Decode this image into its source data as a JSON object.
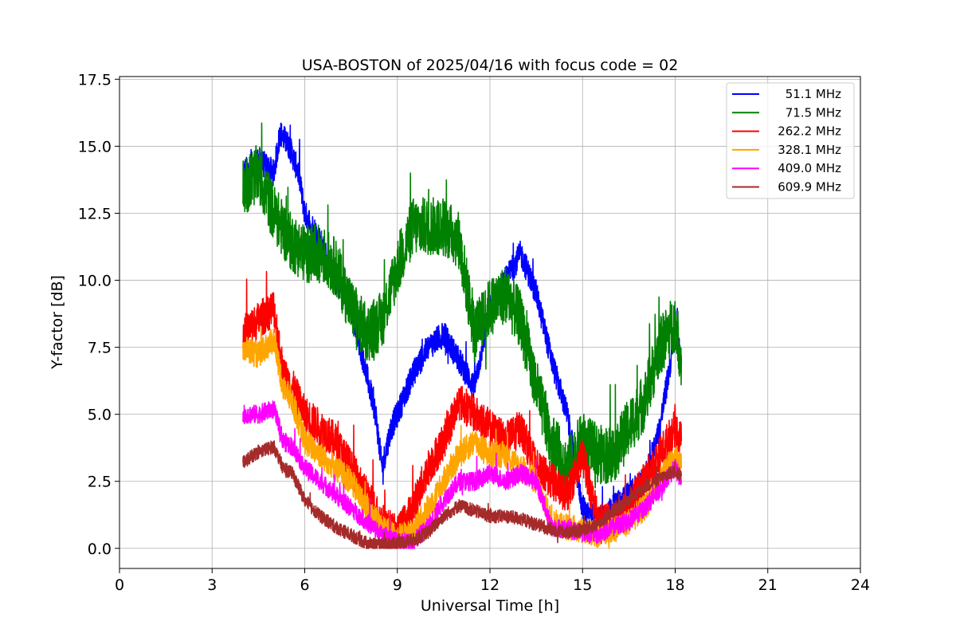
{
  "chart_data": {
    "type": "line",
    "title": "USA-BOSTON of 2025/04/16 with focus code = 02",
    "xlabel": "Universal Time [h]",
    "ylabel": "Y-factor [dB]",
    "xlim": [
      0,
      24
    ],
    "ylim": [
      -0.75,
      17.6
    ],
    "xticks": [
      0,
      3,
      6,
      9,
      12,
      15,
      18,
      21,
      24
    ],
    "yticks": [
      0.0,
      2.5,
      5.0,
      7.5,
      10.0,
      12.5,
      15.0,
      17.5
    ],
    "xtick_labels": [
      "0",
      "3",
      "6",
      "9",
      "12",
      "15",
      "18",
      "21",
      "24"
    ],
    "ytick_labels": [
      "0.0",
      "2.5",
      "5.0",
      "7.5",
      "10.0",
      "12.5",
      "15.0",
      "17.5"
    ],
    "grid": true,
    "legend_position": "top-right",
    "series": [
      {
        "name": "51.1 MHz",
        "color": "#0000ff",
        "noise": 0.5,
        "x": [
          4.0,
          4.5,
          5.0,
          5.2,
          5.5,
          5.8,
          6.0,
          6.5,
          7.0,
          7.5,
          8.0,
          8.3,
          8.5,
          8.8,
          9.0,
          9.5,
          10.0,
          10.5,
          11.0,
          11.5,
          12.0,
          12.5,
          13.0,
          13.5,
          14.0,
          14.5,
          15.0,
          15.5,
          16.0,
          16.5,
          17.0,
          17.5,
          18.0,
          18.2
        ],
        "y": [
          14.0,
          14.5,
          14.0,
          15.5,
          15.0,
          14.0,
          12.5,
          11.5,
          10.0,
          9.0,
          6.5,
          5.0,
          3.0,
          4.5,
          5.0,
          6.5,
          7.5,
          8.0,
          7.0,
          6.0,
          9.0,
          10.0,
          11.0,
          9.5,
          7.0,
          5.0,
          1.5,
          1.0,
          1.5,
          2.0,
          2.5,
          4.5,
          8.0,
          7.0
        ]
      },
      {
        "name": "71.5 MHz",
        "color": "#008000",
        "noise": 1.1,
        "x": [
          4.0,
          4.5,
          5.0,
          5.5,
          6.0,
          6.5,
          7.0,
          7.5,
          8.0,
          8.5,
          9.0,
          9.5,
          10.0,
          10.5,
          11.0,
          11.5,
          12.0,
          12.5,
          13.0,
          13.5,
          14.0,
          14.5,
          15.0,
          15.5,
          16.0,
          16.5,
          17.0,
          17.5,
          18.0,
          18.2
        ],
        "y": [
          13.5,
          14.0,
          12.5,
          11.5,
          11.0,
          11.0,
          10.5,
          9.0,
          8.0,
          8.5,
          10.5,
          12.0,
          12.0,
          12.0,
          11.5,
          8.0,
          9.0,
          9.5,
          8.5,
          6.0,
          4.0,
          3.0,
          4.0,
          3.5,
          3.5,
          4.5,
          5.5,
          7.5,
          8.5,
          7.0
        ]
      },
      {
        "name": "262.2 MHz",
        "color": "#ff0000",
        "noise": 0.7,
        "x": [
          4.0,
          4.5,
          5.0,
          5.3,
          5.6,
          6.0,
          6.5,
          7.0,
          7.5,
          8.0,
          8.5,
          9.0,
          9.5,
          10.0,
          10.5,
          11.0,
          11.5,
          12.0,
          12.5,
          13.0,
          13.5,
          14.0,
          14.5,
          15.0,
          15.5,
          16.0,
          16.5,
          17.0,
          17.5,
          18.0,
          18.2
        ],
        "y": [
          8.0,
          8.5,
          9.0,
          6.5,
          6.0,
          5.0,
          4.5,
          4.0,
          3.0,
          2.0,
          1.0,
          0.5,
          1.5,
          3.0,
          4.0,
          5.5,
          5.0,
          4.5,
          4.0,
          4.5,
          3.0,
          2.5,
          2.0,
          3.5,
          1.0,
          1.0,
          1.5,
          2.5,
          3.5,
          4.5,
          4.0
        ]
      },
      {
        "name": "328.1 MHz",
        "color": "#ffa500",
        "noise": 0.5,
        "x": [
          4.0,
          4.5,
          5.0,
          5.3,
          5.6,
          6.0,
          6.5,
          7.0,
          7.5,
          8.0,
          8.5,
          9.0,
          9.5,
          10.0,
          10.5,
          11.0,
          11.5,
          12.0,
          12.5,
          13.0,
          13.5,
          14.0,
          14.5,
          15.0,
          15.5,
          16.0,
          16.5,
          17.0,
          17.5,
          18.0,
          18.2
        ],
        "y": [
          7.5,
          7.2,
          7.8,
          6.0,
          5.5,
          4.0,
          3.5,
          3.0,
          2.5,
          1.5,
          0.8,
          0.4,
          0.6,
          1.5,
          2.5,
          3.5,
          4.0,
          3.5,
          3.5,
          3.0,
          2.5,
          1.0,
          0.8,
          0.7,
          0.5,
          0.7,
          1.0,
          1.5,
          2.5,
          3.5,
          3.0
        ]
      },
      {
        "name": "409.0 MHz",
        "color": "#ff00ff",
        "noise": 0.35,
        "x": [
          4.0,
          4.5,
          5.0,
          5.3,
          5.6,
          6.0,
          6.5,
          7.0,
          7.5,
          8.0,
          8.5,
          9.0,
          9.5,
          10.0,
          10.5,
          11.0,
          11.5,
          12.0,
          12.5,
          13.0,
          13.5,
          14.0,
          14.5,
          15.0,
          15.5,
          16.0,
          16.5,
          17.0,
          17.5,
          18.0,
          18.2
        ],
        "y": [
          5.0,
          5.0,
          5.2,
          4.0,
          3.8,
          3.0,
          2.5,
          2.0,
          1.5,
          1.0,
          0.5,
          0.3,
          0.2,
          0.8,
          1.8,
          2.5,
          2.5,
          2.8,
          2.5,
          2.8,
          2.5,
          0.8,
          0.7,
          0.6,
          0.5,
          0.8,
          1.0,
          1.5,
          2.2,
          3.0,
          2.5
        ]
      },
      {
        "name": "609.9 MHz",
        "color": "#a52a2a",
        "noise": 0.25,
        "x": [
          4.0,
          4.5,
          5.0,
          5.3,
          5.6,
          6.0,
          6.5,
          7.0,
          7.5,
          8.0,
          8.5,
          9.0,
          9.5,
          10.0,
          10.5,
          11.0,
          11.5,
          12.0,
          12.5,
          13.0,
          13.5,
          14.0,
          14.5,
          15.0,
          15.5,
          16.0,
          16.5,
          17.0,
          17.5,
          18.0,
          18.2
        ],
        "y": [
          3.2,
          3.6,
          3.8,
          3.0,
          2.8,
          1.8,
          1.2,
          0.8,
          0.5,
          0.2,
          0.1,
          0.2,
          0.3,
          0.6,
          1.2,
          1.6,
          1.4,
          1.2,
          1.2,
          1.1,
          0.9,
          0.7,
          0.6,
          0.7,
          0.9,
          1.4,
          1.8,
          2.3,
          2.6,
          2.9,
          2.7
        ]
      }
    ]
  }
}
